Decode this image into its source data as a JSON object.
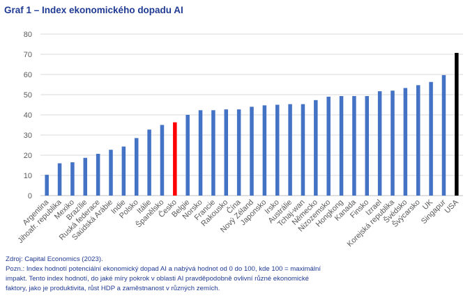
{
  "colors": {
    "default": "#4472c4",
    "highlight": "#ff0000",
    "usa": "#000000",
    "title": "#1f3a93",
    "grid": "#d9d9d9"
  },
  "chart_data": {
    "type": "bar",
    "title": "Graf 1 – Index ekonomického dopadu AI",
    "xlabel": "",
    "ylabel": "",
    "ylim": [
      0,
      80
    ],
    "yticks": [
      0,
      10,
      20,
      30,
      40,
      50,
      60,
      70,
      80
    ],
    "grid": true,
    "categories": [
      "Argentina",
      "Jihoafr. republika",
      "Mexiko",
      "Brazílie",
      "Ruská federace",
      "Saúdská Arábie",
      "Indie",
      "Polsko",
      "Itálie",
      "Španělsko",
      "Česko",
      "Belgie",
      "Norsko",
      "Francie",
      "Rakousko",
      "Čína",
      "Nový Zéland",
      "Japonsko",
      "Irsko",
      "Austrálie",
      "Tchaj-wan",
      "Německo",
      "Nizozemsko",
      "Hongkong",
      "Kanada",
      "Finsko",
      "Izrael",
      "Korejská republika",
      "Švédsko",
      "Švýcarsko",
      "UK",
      "Singapur",
      "USA"
    ],
    "values": [
      10.3,
      16,
      16.5,
      18.7,
      20.7,
      22.7,
      24.3,
      28.5,
      32.7,
      35,
      36.3,
      40,
      42.3,
      42.3,
      42.7,
      42.7,
      44,
      44.7,
      45,
      45.3,
      45.3,
      47.3,
      49,
      49.3,
      49.3,
      49.3,
      51.7,
      52,
      53.3,
      54.7,
      56.3,
      59.7,
      70.7
    ],
    "highlight": {
      "Česko": "highlight",
      "USA": "usa"
    }
  },
  "notes": {
    "source": "Zdroj: Capital Economics (2023).",
    "note1": "Pozn.: Index hodnotí potenciální ekonomický dopad AI a nabývá hodnot od 0 do 100, kde 100 = maximální",
    "note2": "impakt. Tento index hodnotí, do jaké míry pokrok v oblasti AI pravděpodobně ovlivní různé ekonomické",
    "note3": "faktory, jako je produktivita, růst HDP a zaměstnanost v různých zemích."
  }
}
